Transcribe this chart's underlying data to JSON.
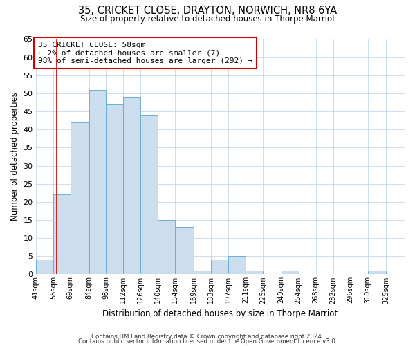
{
  "title": "35, CRICKET CLOSE, DRAYTON, NORWICH, NR8 6YA",
  "subtitle": "Size of property relative to detached houses in Thorpe Marriot",
  "xlabel": "Distribution of detached houses by size in Thorpe Marriot",
  "ylabel": "Number of detached properties",
  "bar_left_edges": [
    41,
    55,
    69,
    84,
    98,
    112,
    126,
    140,
    154,
    169,
    183,
    197,
    211,
    225,
    240,
    254,
    268,
    282,
    296,
    310
  ],
  "bar_heights": [
    4,
    22,
    42,
    51,
    47,
    49,
    44,
    15,
    13,
    1,
    4,
    5,
    1,
    0,
    1,
    0,
    0,
    0,
    0,
    1
  ],
  "bar_widths": [
    14,
    14,
    15,
    14,
    14,
    14,
    14,
    14,
    15,
    14,
    14,
    14,
    14,
    15,
    14,
    14,
    14,
    14,
    14,
    15
  ],
  "bar_color": "#ccdded",
  "bar_edge_color": "#6aaed6",
  "x_tick_labels": [
    "41sqm",
    "55sqm",
    "69sqm",
    "84sqm",
    "98sqm",
    "112sqm",
    "126sqm",
    "140sqm",
    "154sqm",
    "169sqm",
    "183sqm",
    "197sqm",
    "211sqm",
    "225sqm",
    "240sqm",
    "254sqm",
    "268sqm",
    "282sqm",
    "296sqm",
    "310sqm",
    "325sqm"
  ],
  "x_tick_positions": [
    41,
    55,
    69,
    84,
    98,
    112,
    126,
    140,
    154,
    169,
    183,
    197,
    211,
    225,
    240,
    254,
    268,
    282,
    296,
    310,
    325
  ],
  "xlim": [
    41,
    340
  ],
  "ylim": [
    0,
    65
  ],
  "yticks": [
    0,
    5,
    10,
    15,
    20,
    25,
    30,
    35,
    40,
    45,
    50,
    55,
    60,
    65
  ],
  "property_line_x": 58,
  "property_line_color": "#cc0000",
  "annotation_text": "35 CRICKET CLOSE: 58sqm\n← 2% of detached houses are smaller (7)\n98% of semi-detached houses are larger (292) →",
  "annotation_box_color": "#ffffff",
  "annotation_box_edge_color": "#cc0000",
  "footer_line1": "Contains HM Land Registry data © Crown copyright and database right 2024.",
  "footer_line2": "Contains public sector information licensed under the Open Government Licence v3.0.",
  "background_color": "#ffffff",
  "grid_color": "#c8d8e8"
}
